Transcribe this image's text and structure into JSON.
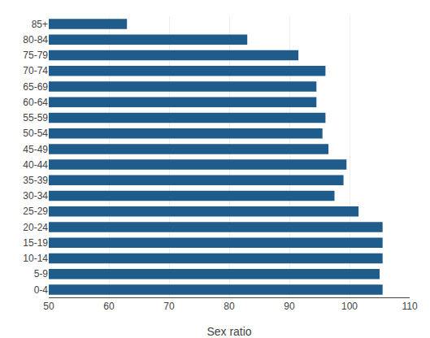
{
  "chart_data": {
    "type": "bar",
    "orientation": "horizontal",
    "categories": [
      "0-4",
      "5-9",
      "10-14",
      "15-19",
      "20-24",
      "25-29",
      "30-34",
      "35-39",
      "40-44",
      "45-49",
      "50-54",
      "55-59",
      "60-64",
      "65-69",
      "70-74",
      "75-79",
      "80-84",
      "85+"
    ],
    "values": [
      105.5,
      105.0,
      105.5,
      105.5,
      105.5,
      101.5,
      97.5,
      99.0,
      99.5,
      96.5,
      95.5,
      96.0,
      94.5,
      94.5,
      96.0,
      91.5,
      83.0,
      63.0
    ],
    "color": "#1F5C8B",
    "xlabel": "Sex ratio",
    "xlim": [
      50,
      110
    ],
    "xticks": [
      50,
      60,
      70,
      80,
      90,
      100,
      110
    ],
    "grid": true
  }
}
